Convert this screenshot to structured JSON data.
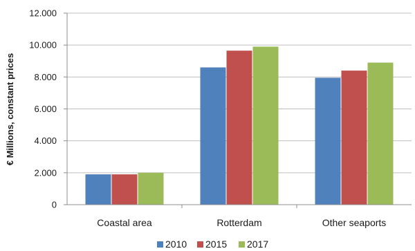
{
  "chart_data": {
    "type": "bar",
    "title": "",
    "xlabel": "",
    "ylabel": "€ Millions, constant prices",
    "categories": [
      "Coastal area",
      "Rotterdam",
      "Other seaports"
    ],
    "series": [
      {
        "name": "2010",
        "color": "#4f81bd",
        "values": [
          1900,
          8600,
          7950
        ]
      },
      {
        "name": "2015",
        "color": "#c0504d",
        "values": [
          1900,
          9650,
          8400
        ]
      },
      {
        "name": "2017",
        "color": "#9bbb59",
        "values": [
          2000,
          9900,
          8900
        ]
      }
    ],
    "ylim": [
      0,
      12000
    ],
    "yticks": [
      0,
      2000,
      4000,
      6000,
      8000,
      10000,
      12000
    ],
    "ytick_labels": [
      "0",
      "2.000",
      "4.000",
      "6.000",
      "8.000",
      "10.000",
      "12.000"
    ],
    "grid": true,
    "legend_position": "bottom"
  }
}
